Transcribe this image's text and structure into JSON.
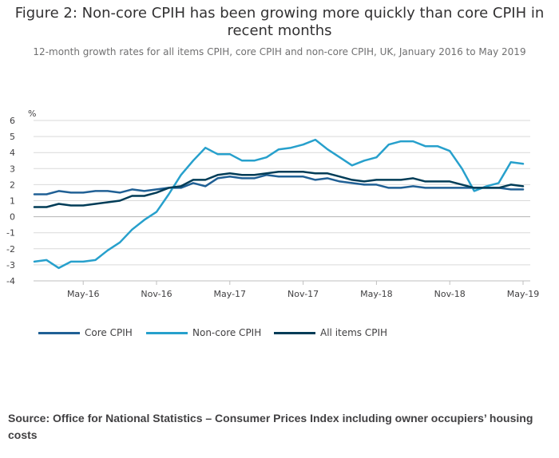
{
  "title_line1": "Figure 2: Non-core CPIH has been growing more quickly than core CPIH in",
  "title_line2": "recent months",
  "subtitle": "12-month growth rates for all items CPIH, core CPIH and non-core CPIH, UK, January 2016 to May 2019",
  "source": "Source: Office for National Statistics – Consumer Prices Index including owner occupiers’ housing costs",
  "colors": {
    "core": "#206095",
    "noncore": "#27a0cc",
    "all": "#003c57",
    "grid": "#d9d9d9",
    "axis": "#bfbfbf"
  },
  "chart_data": {
    "type": "line",
    "ylabel": "%",
    "ylim": [
      -4,
      6
    ],
    "yticks": [
      -4,
      -3,
      -2,
      -1,
      0,
      1,
      2,
      3,
      4,
      5,
      6
    ],
    "x": [
      "Jan-16",
      "Feb-16",
      "Mar-16",
      "Apr-16",
      "May-16",
      "Jun-16",
      "Jul-16",
      "Aug-16",
      "Sep-16",
      "Oct-16",
      "Nov-16",
      "Dec-16",
      "Jan-17",
      "Feb-17",
      "Mar-17",
      "Apr-17",
      "May-17",
      "Jun-17",
      "Jul-17",
      "Aug-17",
      "Sep-17",
      "Oct-17",
      "Nov-17",
      "Dec-17",
      "Jan-18",
      "Feb-18",
      "Mar-18",
      "Apr-18",
      "May-18",
      "Jun-18",
      "Jul-18",
      "Aug-18",
      "Sep-18",
      "Oct-18",
      "Nov-18",
      "Dec-18",
      "Jan-19",
      "Feb-19",
      "Mar-19",
      "Apr-19",
      "May-19"
    ],
    "xtick_labels": [
      {
        "index": 4,
        "label": "May-16"
      },
      {
        "index": 10,
        "label": "Nov-16"
      },
      {
        "index": 16,
        "label": "May-17"
      },
      {
        "index": 22,
        "label": "Nov-17"
      },
      {
        "index": 28,
        "label": "May-18"
      },
      {
        "index": 34,
        "label": "Nov-18"
      },
      {
        "index": 40,
        "label": "May-19"
      }
    ],
    "series": [
      {
        "name": "Core CPIH",
        "key": "core",
        "values": [
          1.4,
          1.4,
          1.6,
          1.5,
          1.5,
          1.6,
          1.6,
          1.5,
          1.7,
          1.6,
          1.7,
          1.8,
          1.8,
          2.1,
          1.9,
          2.4,
          2.5,
          2.4,
          2.4,
          2.6,
          2.5,
          2.5,
          2.5,
          2.3,
          2.4,
          2.2,
          2.1,
          2.0,
          2.0,
          1.8,
          1.8,
          1.9,
          1.8,
          1.8,
          1.8,
          1.8,
          1.8,
          1.8,
          1.8,
          1.7,
          1.7
        ]
      },
      {
        "name": "Non-core CPIH",
        "key": "noncore",
        "values": [
          -2.8,
          -2.7,
          -3.2,
          -2.8,
          -2.8,
          -2.7,
          -2.1,
          -1.6,
          -0.8,
          -0.2,
          0.3,
          1.4,
          2.6,
          3.5,
          4.3,
          3.9,
          3.9,
          3.5,
          3.5,
          3.7,
          4.2,
          4.3,
          4.5,
          4.8,
          4.2,
          3.7,
          3.2,
          3.5,
          3.7,
          4.5,
          4.7,
          4.7,
          4.4,
          4.4,
          4.1,
          3.0,
          1.6,
          1.9,
          2.1,
          3.4,
          3.3
        ]
      },
      {
        "name": "All items CPIH",
        "key": "all",
        "values": [
          0.6,
          0.6,
          0.8,
          0.7,
          0.7,
          0.8,
          0.9,
          1.0,
          1.3,
          1.3,
          1.5,
          1.8,
          1.9,
          2.3,
          2.3,
          2.6,
          2.7,
          2.6,
          2.6,
          2.7,
          2.8,
          2.8,
          2.8,
          2.7,
          2.7,
          2.5,
          2.3,
          2.2,
          2.3,
          2.3,
          2.3,
          2.4,
          2.2,
          2.2,
          2.2,
          2.0,
          1.8,
          1.8,
          1.8,
          2.0,
          1.9
        ]
      }
    ]
  }
}
